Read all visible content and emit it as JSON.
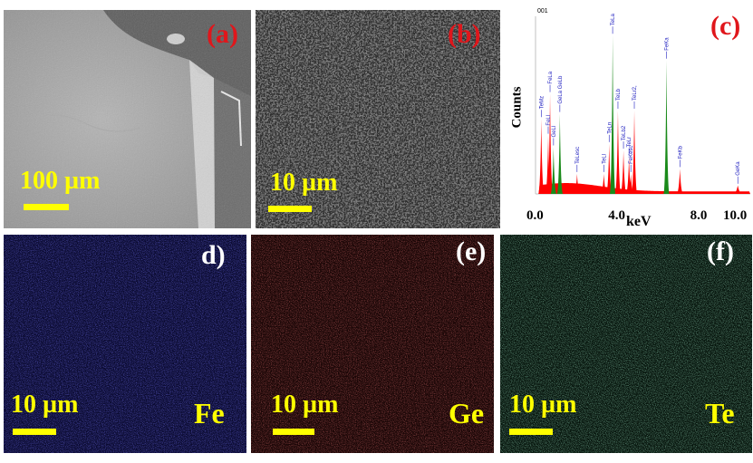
{
  "panels": {
    "a": {
      "label": "(a)",
      "scale": "100 µm"
    },
    "b": {
      "label": "(b)",
      "scale": "10 µm"
    },
    "c": {
      "label": "(c)"
    },
    "d": {
      "label": "d)",
      "scale": "10 µm",
      "element": "Fe"
    },
    "e": {
      "label": "(e)",
      "scale": "10 µm",
      "element": "Ge"
    },
    "f": {
      "label": "(f)",
      "scale": "10 µm",
      "element": "Te"
    }
  },
  "colors": {
    "label_red": "#e0161b",
    "scale_yellow": "#ffff00",
    "fe_map": "#2a2ad8",
    "ge_map": "#d83030",
    "te_map": "#5ed7a0",
    "spectrum_red": "#ff0000",
    "spectrum_green": "#1a8a1a",
    "peak_label_blue": "#2020c0"
  },
  "chart_data": {
    "type": "area",
    "corner_label": "001",
    "ylabel": "Counts",
    "xlabel": "keV",
    "x_ticks": [
      "0.0",
      "4.0",
      "8.0",
      "10.0"
    ],
    "xlim": [
      0,
      10.5
    ],
    "peaks": [
      {
        "label": "TeMz",
        "kev": 0.28,
        "height": 0.45,
        "color": "red"
      },
      {
        "label": "FeLl",
        "kev": 0.62,
        "height": 0.35,
        "color": "red"
      },
      {
        "label": "FeLa",
        "kev": 0.71,
        "height": 0.6,
        "color": "red"
      },
      {
        "label": "GeLl",
        "kev": 0.88,
        "height": 0.28,
        "color": "green"
      },
      {
        "label": "GeLa GeLb",
        "kev": 1.19,
        "height": 0.48,
        "color": "green"
      },
      {
        "label": "TeLesc",
        "kev": 2.03,
        "height": 0.12,
        "color": "red"
      },
      {
        "label": "TeLl",
        "kev": 3.34,
        "height": 0.12,
        "color": "red"
      },
      {
        "label": "TeLn",
        "kev": 3.6,
        "height": 0.3,
        "color": "red"
      },
      {
        "label": "TeLa",
        "kev": 3.77,
        "height": 0.95,
        "color": "green"
      },
      {
        "label": "TeLb",
        "kev": 4.03,
        "height": 0.5,
        "color": "red"
      },
      {
        "label": "TeLb2",
        "kev": 4.3,
        "height": 0.26,
        "color": "red"
      },
      {
        "label": "TeLr",
        "kev": 4.57,
        "height": 0.22,
        "color": "red"
      },
      {
        "label": "FeKesc",
        "kev": 4.66,
        "height": 0.12,
        "color": "red"
      },
      {
        "label": "TeLr2,",
        "kev": 4.83,
        "height": 0.5,
        "color": "red"
      },
      {
        "label": "FeKa",
        "kev": 6.4,
        "height": 0.8,
        "color": "green"
      },
      {
        "label": "FeKb",
        "kev": 7.06,
        "height": 0.15,
        "color": "red"
      },
      {
        "label": "GeKa",
        "kev": 9.89,
        "height": 0.05,
        "color": "red"
      }
    ]
  }
}
